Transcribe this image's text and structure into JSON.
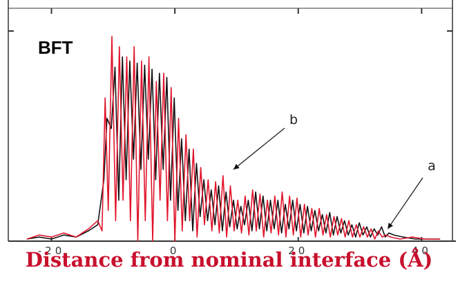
{
  "chart_data": {
    "type": "line",
    "title": "",
    "panel_label": "BFT",
    "xlabel": "Distance from nominal interface (Å)",
    "ylabel": "",
    "xlim": [
      -27,
      45
    ],
    "ylim": [
      0,
      1.05
    ],
    "x_ticks": [
      -20,
      0,
      20,
      40
    ],
    "x_tick_labels": [
      "-20",
      "0",
      "20",
      "40"
    ],
    "grid": false,
    "legend": "none",
    "series": [
      {
        "name": "a",
        "color": "#111111",
        "x": [
          -24,
          -22,
          -20,
          -18,
          -16,
          -14,
          -12.5,
          -11.5,
          -11,
          -10.3,
          -9.7,
          -9.1,
          -8.5,
          -7.9,
          -7.3,
          -6.7,
          -6.1,
          -5.5,
          -4.9,
          -4.3,
          -3.7,
          -3.1,
          -2.5,
          -1.9,
          -1.3,
          -0.7,
          -0.1,
          0.5,
          1.1,
          1.7,
          2.3,
          2.9,
          3.5,
          4.1,
          4.7,
          5.3,
          5.9,
          6.5,
          7.1,
          7.7,
          8.3,
          8.9,
          9.5,
          10.1,
          10.7,
          11.3,
          11.9,
          12.5,
          13.1,
          13.7,
          14.3,
          14.9,
          15.5,
          16.1,
          16.7,
          17.3,
          17.9,
          18.5,
          19.1,
          19.7,
          20.3,
          20.9,
          21.5,
          22.1,
          22.7,
          23.3,
          23.9,
          24.5,
          25.1,
          25.7,
          26.3,
          26.9,
          27.5,
          28.1,
          28.7,
          29.3,
          29.9,
          30.5,
          31.1,
          31.7,
          32.3,
          32.9,
          33.5,
          34.1,
          34.7,
          35.5,
          37,
          39,
          41,
          43
        ],
        "y": [
          0.01,
          0.02,
          0.01,
          0.03,
          0.02,
          0.05,
          0.08,
          0.3,
          0.6,
          0.55,
          0.85,
          0.2,
          0.9,
          0.3,
          0.88,
          0.4,
          0.87,
          0.35,
          0.86,
          0.4,
          0.84,
          0.3,
          0.82,
          0.35,
          0.8,
          0.2,
          0.7,
          0.15,
          0.5,
          0.1,
          0.45,
          0.05,
          0.38,
          0.12,
          0.3,
          0.1,
          0.25,
          0.08,
          0.27,
          0.05,
          0.24,
          0.07,
          0.2,
          0.06,
          0.17,
          0.08,
          0.2,
          0.05,
          0.24,
          0.06,
          0.22,
          0.05,
          0.2,
          0.06,
          0.2,
          0.04,
          0.18,
          0.06,
          0.2,
          0.05,
          0.18,
          0.04,
          0.17,
          0.05,
          0.15,
          0.05,
          0.13,
          0.04,
          0.14,
          0.03,
          0.12,
          0.04,
          0.1,
          0.03,
          0.08,
          0.02,
          0.09,
          0.03,
          0.07,
          0.02,
          0.06,
          0.03,
          0.07,
          0.02,
          0.04,
          0.03,
          0.02,
          0.01,
          0.01,
          0.01
        ]
      },
      {
        "name": "b",
        "color": "#e0142a",
        "x": [
          -24,
          -22,
          -20,
          -18,
          -16,
          -14,
          -12.5,
          -11.8,
          -11.3,
          -10.8,
          -10.2,
          -9.6,
          -9,
          -8.4,
          -7.8,
          -7.2,
          -6.6,
          -6,
          -5.4,
          -4.8,
          -4.2,
          -3.6,
          -3,
          -2.4,
          -1.8,
          -1.2,
          -0.6,
          0,
          0.6,
          1.2,
          1.8,
          2.4,
          3,
          3.6,
          4.2,
          4.8,
          5.4,
          6,
          6.6,
          7.2,
          7.8,
          8.4,
          9,
          9.6,
          10.2,
          10.8,
          11.4,
          12,
          12.6,
          13.2,
          13.8,
          14.4,
          15,
          15.6,
          16.2,
          16.8,
          17.4,
          18,
          18.6,
          19.2,
          19.8,
          20.4,
          21,
          21.6,
          22.2,
          22.8,
          23.4,
          24,
          24.6,
          25.2,
          25.8,
          26.4,
          27,
          27.6,
          28.2,
          28.8,
          29.4,
          30,
          30.6,
          31.2,
          31.8,
          32.4,
          33,
          33.6,
          34.2,
          35,
          36.5,
          38.5,
          40.5,
          43
        ],
        "y": [
          0.01,
          0.03,
          0.02,
          0.04,
          0.02,
          0.06,
          0.1,
          0.05,
          0.7,
          0.15,
          1.0,
          0.1,
          0.95,
          0.2,
          0.9,
          0.1,
          0.95,
          0.0,
          0.88,
          0.1,
          0.9,
          0.0,
          0.78,
          0.2,
          0.82,
          0.1,
          0.75,
          0.0,
          0.6,
          0.05,
          0.52,
          0.1,
          0.45,
          0.02,
          0.36,
          0.08,
          0.3,
          0.05,
          0.29,
          0.04,
          0.32,
          0.02,
          0.27,
          0.05,
          0.2,
          0.04,
          0.22,
          0.03,
          0.25,
          0.05,
          0.23,
          0.02,
          0.2,
          0.04,
          0.22,
          0.03,
          0.24,
          0.02,
          0.22,
          0.03,
          0.21,
          0.02,
          0.18,
          0.03,
          0.16,
          0.02,
          0.16,
          0.03,
          0.13,
          0.02,
          0.12,
          0.03,
          0.11,
          0.02,
          0.1,
          0.02,
          0.08,
          0.02,
          0.07,
          0.02,
          0.06,
          0.01,
          0.05,
          0.02,
          0.03,
          0.02,
          0.01,
          0.02,
          0.01,
          0.01
        ]
      }
    ],
    "annotations": [
      {
        "text": "b",
        "points_to_series": "b",
        "target": [
          9.5,
          0.35
        ]
      },
      {
        "text": "a",
        "points_to_series": "a",
        "target": [
          34.5,
          0.06
        ]
      }
    ]
  },
  "colors": {
    "xlabel": "#c8102e",
    "axis": "#333333"
  }
}
